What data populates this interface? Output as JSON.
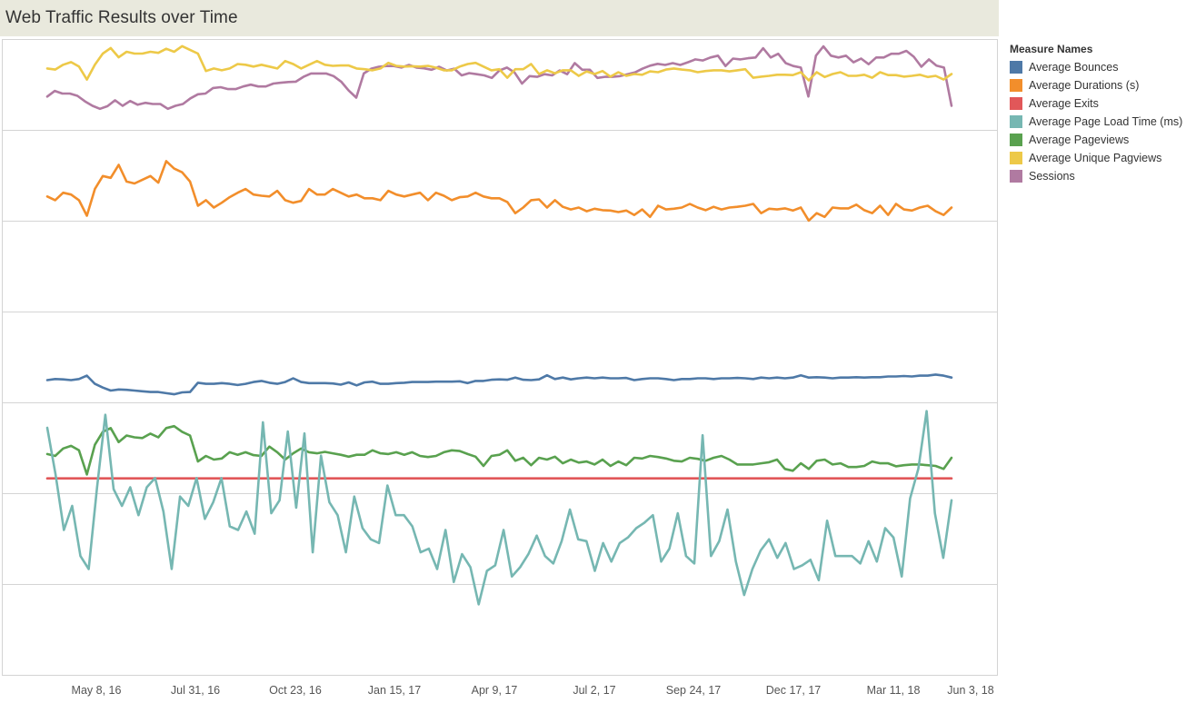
{
  "header": {
    "title": "Web Traffic Results over Time"
  },
  "legend": {
    "title": "Measure Names",
    "items": [
      {
        "label": "Average Bounces",
        "color": "#4e79a7"
      },
      {
        "label": "Average Durations (s)",
        "color": "#f28e2b"
      },
      {
        "label": "Average Exits",
        "color": "#e15759"
      },
      {
        "label": "Average Page Load Time (ms)",
        "color": "#76b7b2"
      },
      {
        "label": "Average Pageviews",
        "color": "#59a14f"
      },
      {
        "label": "Average Unique Pagviews",
        "color": "#edc948"
      },
      {
        "label": "Sessions",
        "color": "#b07aa1"
      }
    ]
  },
  "chart_data": {
    "type": "line",
    "title": "Web Traffic Results over Time",
    "xlabel": "",
    "ylabel": "",
    "grid": false,
    "legend_position": "right",
    "layout": "small-multiples-stacked",
    "x_ticks": [
      "May 8, 16",
      "Jul 31, 16",
      "Oct 23, 16",
      "Jan 15, 17",
      "Apr 9, 17",
      "Jul 2, 17",
      "Sep 24, 17",
      "Dec 17, 17",
      "Mar 11, 18",
      "Jun 3, 18"
    ],
    "series": [
      {
        "name": "Sessions",
        "color": "#b07aa1",
        "values": [
          0.8,
          0.95,
          0.88,
          0.88,
          0.82,
          0.67,
          0.55,
          0.47,
          0.54,
          0.7,
          0.55,
          0.68,
          0.58,
          0.63,
          0.6,
          0.6,
          0.47,
          0.55,
          0.6,
          0.75,
          0.86,
          0.88,
          1.03,
          1.05,
          1.0,
          1.0,
          1.07,
          1.12,
          1.07,
          1.07,
          1.15,
          1.17,
          1.19,
          1.2,
          1.33,
          1.42,
          1.42,
          1.42,
          1.35,
          1.2,
          0.96,
          0.77,
          1.42,
          1.55,
          1.6,
          1.62,
          1.62,
          1.58,
          1.65,
          1.58,
          1.56,
          1.52,
          1.6,
          1.5,
          1.55,
          1.37,
          1.43,
          1.4,
          1.37,
          1.3,
          1.5,
          1.58,
          1.45,
          1.15,
          1.35,
          1.33,
          1.4,
          1.37,
          1.5,
          1.4,
          1.7,
          1.52,
          1.52,
          1.3,
          1.33,
          1.33,
          1.35,
          1.4,
          1.45,
          1.55,
          1.63,
          1.68,
          1.65,
          1.7,
          1.65,
          1.72,
          1.8,
          1.77,
          1.85,
          1.9,
          1.62,
          1.82,
          1.8,
          1.83,
          1.85,
          2.1,
          1.85,
          1.95,
          1.7,
          1.62,
          1.58,
          0.8,
          1.9,
          2.15,
          1.9,
          1.85,
          1.9,
          1.72,
          1.82,
          1.67,
          1.85,
          1.85,
          1.95,
          1.95,
          2.03,
          1.87,
          1.6,
          1.8,
          1.63,
          1.58,
          0.55
        ]
      },
      {
        "name": "Average Unique Pagviews",
        "color": "#edc948",
        "values": [
          4.0,
          3.97,
          4.1,
          4.17,
          4.05,
          3.7,
          4.1,
          4.4,
          4.55,
          4.3,
          4.45,
          4.4,
          4.4,
          4.45,
          4.42,
          4.53,
          4.45,
          4.6,
          4.5,
          4.4,
          3.93,
          4.0,
          3.95,
          4.0,
          4.12,
          4.1,
          4.05,
          4.1,
          4.05,
          4.0,
          4.2,
          4.12,
          4.0,
          4.1,
          4.2,
          4.1,
          4.07,
          4.08,
          4.08,
          4.0,
          3.98,
          3.95,
          4.0,
          4.15,
          4.07,
          4.05,
          4.06,
          4.05,
          4.07,
          4.02,
          3.95,
          3.95,
          4.05,
          4.12,
          4.15,
          4.05,
          3.95,
          3.98,
          3.75,
          3.98,
          3.98,
          4.12,
          3.85,
          3.95,
          3.87,
          3.95,
          3.95,
          3.8,
          3.92,
          3.85,
          3.93,
          3.78,
          3.9,
          3.8,
          3.85,
          3.83,
          3.92,
          3.9,
          3.97,
          4.0,
          3.97,
          3.95,
          3.9,
          3.93,
          3.95,
          3.95,
          3.92,
          3.95,
          3.98,
          3.75,
          3.78,
          3.8,
          3.83,
          3.83,
          3.82,
          3.9,
          3.68,
          3.9,
          3.77,
          3.85,
          3.9,
          3.8,
          3.8,
          3.83,
          3.75,
          3.9,
          3.82,
          3.82,
          3.78,
          3.8,
          3.83,
          3.77,
          3.8,
          3.7,
          3.85
        ]
      },
      {
        "name": "Average Durations (s)",
        "color": "#f28e2b",
        "values": [
          3.0,
          2.9,
          3.1,
          3.05,
          2.9,
          2.48,
          3.2,
          3.55,
          3.5,
          3.85,
          3.4,
          3.35,
          3.45,
          3.55,
          3.37,
          3.95,
          3.75,
          3.65,
          3.4,
          2.75,
          2.9,
          2.7,
          2.83,
          2.98,
          3.1,
          3.2,
          3.05,
          3.02,
          3.0,
          3.15,
          2.9,
          2.83,
          2.88,
          3.2,
          3.05,
          3.05,
          3.2,
          3.1,
          3.0,
          3.05,
          2.95,
          2.95,
          2.9,
          3.15,
          3.05,
          3.0,
          3.05,
          3.1,
          2.9,
          3.1,
          3.02,
          2.9,
          2.98,
          3.0,
          3.1,
          3.0,
          2.95,
          2.95,
          2.85,
          2.55,
          2.7,
          2.9,
          2.92,
          2.7,
          2.9,
          2.72,
          2.65,
          2.7,
          2.6,
          2.67,
          2.63,
          2.62,
          2.58,
          2.62,
          2.5,
          2.65,
          2.45,
          2.75,
          2.65,
          2.67,
          2.7,
          2.8,
          2.7,
          2.63,
          2.72,
          2.65,
          2.7,
          2.72,
          2.75,
          2.8,
          2.55,
          2.67,
          2.65,
          2.68,
          2.62,
          2.7,
          2.35,
          2.55,
          2.45,
          2.7,
          2.68,
          2.68,
          2.78,
          2.63,
          2.55,
          2.75,
          2.5,
          2.8,
          2.65,
          2.62,
          2.7,
          2.75,
          2.6,
          2.5,
          2.7
        ]
      },
      {
        "name": "Average Bounces",
        "color": "#4e79a7",
        "values": [
          0.5,
          0.53,
          0.52,
          0.5,
          0.53,
          0.62,
          0.4,
          0.3,
          0.22,
          0.25,
          0.24,
          0.22,
          0.2,
          0.18,
          0.18,
          0.15,
          0.12,
          0.17,
          0.18,
          0.43,
          0.4,
          0.4,
          0.42,
          0.4,
          0.37,
          0.4,
          0.45,
          0.48,
          0.43,
          0.4,
          0.45,
          0.55,
          0.45,
          0.42,
          0.42,
          0.42,
          0.41,
          0.38,
          0.44,
          0.36,
          0.44,
          0.46,
          0.4,
          0.4,
          0.42,
          0.43,
          0.45,
          0.45,
          0.45,
          0.46,
          0.46,
          0.46,
          0.47,
          0.42,
          0.48,
          0.48,
          0.51,
          0.52,
          0.51,
          0.57,
          0.51,
          0.5,
          0.52,
          0.63,
          0.53,
          0.57,
          0.52,
          0.55,
          0.57,
          0.55,
          0.57,
          0.55,
          0.55,
          0.56,
          0.5,
          0.53,
          0.55,
          0.55,
          0.53,
          0.5,
          0.53,
          0.53,
          0.55,
          0.55,
          0.53,
          0.55,
          0.55,
          0.56,
          0.55,
          0.53,
          0.57,
          0.55,
          0.57,
          0.55,
          0.57,
          0.63,
          0.57,
          0.58,
          0.57,
          0.55,
          0.57,
          0.57,
          0.58,
          0.57,
          0.58,
          0.58,
          0.6,
          0.6,
          0.61,
          0.6,
          0.62,
          0.62,
          0.65,
          0.62,
          0.57
        ]
      },
      {
        "name": "Average Exits",
        "color": "#e15759",
        "values": [
          0.3,
          0.3,
          0.3,
          0.3,
          0.3,
          0.3,
          0.3,
          0.3,
          0.3,
          0.3,
          0.3,
          0.3,
          0.3,
          0.3,
          0.3,
          0.3,
          0.3,
          0.3,
          0.3,
          0.3,
          0.3,
          0.3,
          0.3,
          0.3,
          0.3,
          0.3,
          0.3,
          0.3,
          0.3,
          0.3,
          0.3,
          0.3,
          0.3,
          0.3,
          0.3,
          0.3,
          0.3,
          0.3,
          0.3,
          0.3,
          0.3,
          0.3,
          0.3,
          0.3,
          0.3,
          0.3,
          0.3,
          0.3,
          0.3,
          0.3,
          0.3,
          0.3,
          0.3,
          0.3,
          0.3,
          0.3,
          0.3,
          0.3,
          0.3,
          0.3,
          0.3,
          0.3,
          0.3,
          0.3,
          0.3,
          0.3,
          0.3,
          0.3,
          0.3,
          0.3,
          0.3,
          0.3,
          0.3,
          0.3,
          0.3,
          0.3,
          0.3,
          0.3,
          0.3,
          0.3,
          0.3,
          0.3,
          0.3,
          0.3,
          0.3,
          0.3,
          0.3,
          0.3,
          0.3,
          0.3,
          0.3,
          0.3,
          0.3,
          0.3,
          0.3,
          0.3,
          0.3,
          0.3,
          0.3,
          0.3,
          0.3,
          0.3,
          0.3,
          0.3,
          0.3,
          0.3,
          0.3,
          0.3,
          0.3,
          0.3,
          0.3,
          0.3,
          0.3,
          0.3,
          0.3
        ]
      },
      {
        "name": "Average Pageviews",
        "color": "#59a14f",
        "values": [
          3.4,
          3.35,
          3.55,
          3.62,
          3.5,
          2.85,
          3.65,
          4.0,
          4.1,
          3.72,
          3.9,
          3.85,
          3.83,
          3.95,
          3.85,
          4.1,
          4.15,
          4.0,
          3.9,
          3.2,
          3.35,
          3.25,
          3.28,
          3.45,
          3.38,
          3.45,
          3.37,
          3.35,
          3.6,
          3.45,
          3.25,
          3.42,
          3.55,
          3.45,
          3.42,
          3.46,
          3.42,
          3.38,
          3.33,
          3.38,
          3.38,
          3.5,
          3.42,
          3.4,
          3.45,
          3.38,
          3.45,
          3.35,
          3.32,
          3.35,
          3.45,
          3.5,
          3.48,
          3.4,
          3.33,
          3.08,
          3.35,
          3.38,
          3.5,
          3.22,
          3.3,
          3.1,
          3.3,
          3.25,
          3.33,
          3.15,
          3.25,
          3.17,
          3.2,
          3.12,
          3.25,
          3.08,
          3.2,
          3.1,
          3.3,
          3.28,
          3.35,
          3.32,
          3.28,
          3.22,
          3.2,
          3.3,
          3.27,
          3.22,
          3.3,
          3.35,
          3.25,
          3.12,
          3.12,
          3.12,
          3.15,
          3.18,
          3.25,
          3.0,
          2.95,
          3.15,
          3.0,
          3.22,
          3.25,
          3.12,
          3.15,
          3.05,
          3.05,
          3.08,
          3.2,
          3.15,
          3.15,
          3.07,
          3.1,
          3.12,
          3.12,
          3.1,
          3.08,
          3.0,
          3.3
        ]
      },
      {
        "name": "Average Page Load Time (ms)",
        "color": "#76b7b2",
        "values": [
          6.55,
          5.3,
          3.8,
          4.45,
          3.1,
          2.75,
          4.95,
          6.9,
          4.9,
          4.45,
          4.95,
          4.2,
          4.95,
          5.2,
          4.3,
          2.75,
          4.7,
          4.45,
          5.2,
          4.1,
          4.55,
          5.2,
          3.9,
          3.8,
          4.3,
          3.7,
          6.7,
          4.25,
          4.6,
          6.45,
          4.4,
          6.4,
          3.2,
          5.8,
          4.55,
          4.2,
          3.2,
          4.7,
          3.85,
          3.55,
          3.45,
          5.0,
          4.2,
          4.2,
          3.9,
          3.2,
          3.3,
          2.75,
          3.8,
          2.4,
          3.15,
          2.8,
          1.8,
          2.7,
          2.85,
          3.8,
          2.55,
          2.8,
          3.15,
          3.65,
          3.1,
          2.9,
          3.5,
          4.35,
          3.55,
          3.5,
          2.7,
          3.45,
          2.95,
          3.45,
          3.6,
          3.85,
          4.0,
          4.2,
          2.95,
          3.3,
          4.25,
          3.1,
          2.9,
          6.35,
          3.1,
          3.5,
          4.35,
          2.95,
          2.05,
          2.75,
          3.25,
          3.55,
          3.05,
          3.45,
          2.75,
          2.85,
          3.0,
          2.45,
          4.05,
          3.1,
          3.1,
          3.1,
          2.9,
          3.5,
          2.95,
          3.85,
          3.6,
          2.55,
          4.65,
          5.45,
          7.0,
          4.25,
          3.05,
          4.6
        ]
      }
    ]
  }
}
